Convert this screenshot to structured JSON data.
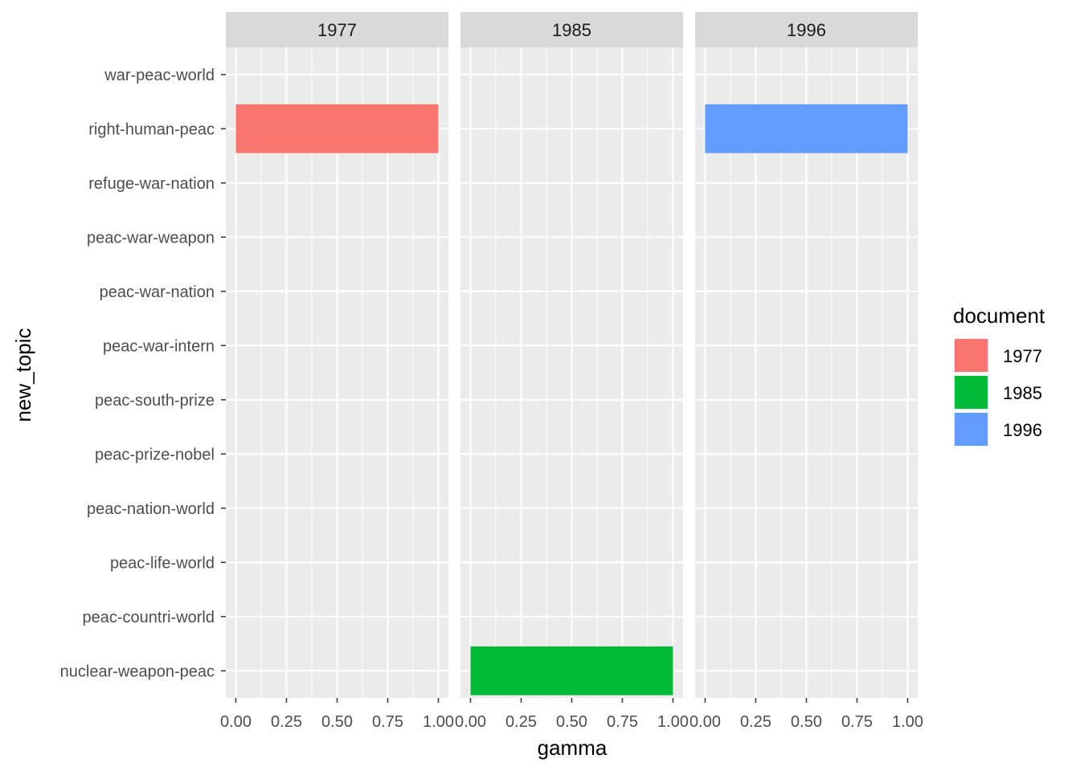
{
  "chart_data": {
    "type": "bar",
    "orientation": "horizontal",
    "facet_by": "document",
    "panels": [
      "1977",
      "1985",
      "1996"
    ],
    "categories": [
      "war-peac-world",
      "right-human-peac",
      "refuge-war-nation",
      "peac-war-weapon",
      "peac-war-nation",
      "peac-war-intern",
      "peac-south-prize",
      "peac-prize-nobel",
      "peac-nation-world",
      "peac-life-world",
      "peac-countri-world",
      "nuclear-weapon-peac"
    ],
    "series": [
      {
        "name": "1977",
        "color": "#F8766D",
        "values": [
          0,
          1.0,
          0,
          0,
          0,
          0,
          0,
          0,
          0,
          0,
          0,
          0
        ]
      },
      {
        "name": "1985",
        "color": "#00BA38",
        "values": [
          0,
          0,
          0,
          0,
          0,
          0,
          0,
          0,
          0,
          0,
          0,
          1.0
        ]
      },
      {
        "name": "1996",
        "color": "#619CFF",
        "values": [
          0,
          1.0,
          0,
          0,
          0,
          0,
          0,
          0,
          0,
          0,
          0,
          0
        ]
      }
    ],
    "xlabel": "gamma",
    "ylabel": "new_topic",
    "xlim": [
      0,
      1
    ],
    "x_ticks": [
      "0.00",
      "0.25",
      "0.50",
      "0.75",
      "1.00"
    ],
    "legend": {
      "title": "document",
      "position": "right",
      "entries": [
        {
          "label": "1977",
          "color": "#F8766D"
        },
        {
          "label": "1985",
          "color": "#00BA38"
        },
        {
          "label": "1996",
          "color": "#619CFF"
        }
      ]
    },
    "grid": true,
    "panel_background": "#EBEBEB",
    "strip_background": "#D9D9D9"
  }
}
